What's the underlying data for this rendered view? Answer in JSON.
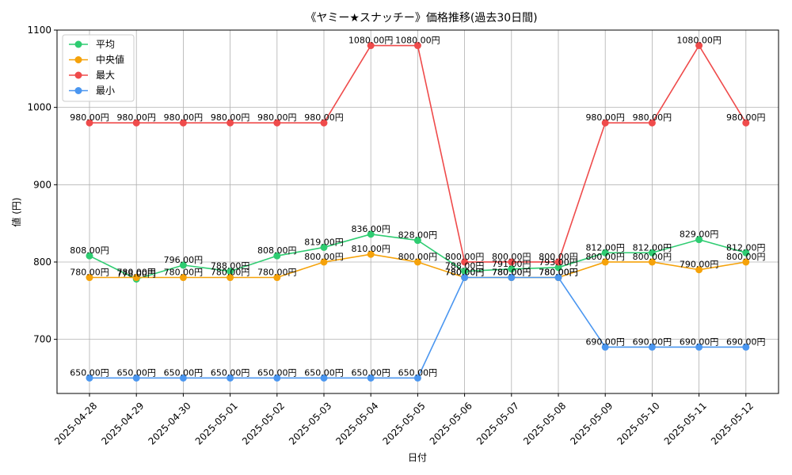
{
  "chart_data": {
    "type": "line",
    "title": "《ヤミー★スナッチー》価格推移(過去30日間)",
    "xlabel": "日付",
    "ylabel": "値 (円)",
    "ylim": [
      630,
      1100
    ],
    "yticks": [
      700,
      800,
      900,
      1000,
      1100
    ],
    "grid": true,
    "legend_position": "top-left",
    "label_suffix": "円",
    "categories": [
      "2025-04-28",
      "2025-04-29",
      "2025-04-30",
      "2025-05-01",
      "2025-05-02",
      "2025-05-03",
      "2025-05-04",
      "2025-05-05",
      "2025-05-06",
      "2025-05-07",
      "2025-05-08",
      "2025-05-09",
      "2025-05-10",
      "2025-05-11",
      "2025-05-12"
    ],
    "series": [
      {
        "name": "平均",
        "color": "#2ecc71",
        "values": [
          808,
          778,
          796,
          788,
          808,
          819,
          836,
          828,
          788,
          791,
          793,
          812,
          812,
          829,
          812
        ]
      },
      {
        "name": "中央値",
        "color": "#f5a20a",
        "values": [
          780,
          780,
          780,
          780,
          780,
          800,
          810,
          800,
          780,
          780,
          780,
          800,
          800,
          790,
          800
        ]
      },
      {
        "name": "最大",
        "color": "#ef4b4b",
        "values": [
          980,
          980,
          980,
          980,
          980,
          980,
          1080,
          1080,
          800,
          800,
          800,
          980,
          980,
          1080,
          980
        ]
      },
      {
        "name": "最小",
        "color": "#4a96f0",
        "values": [
          650,
          650,
          650,
          650,
          650,
          650,
          650,
          650,
          780,
          780,
          780,
          690,
          690,
          690,
          690
        ]
      }
    ]
  }
}
